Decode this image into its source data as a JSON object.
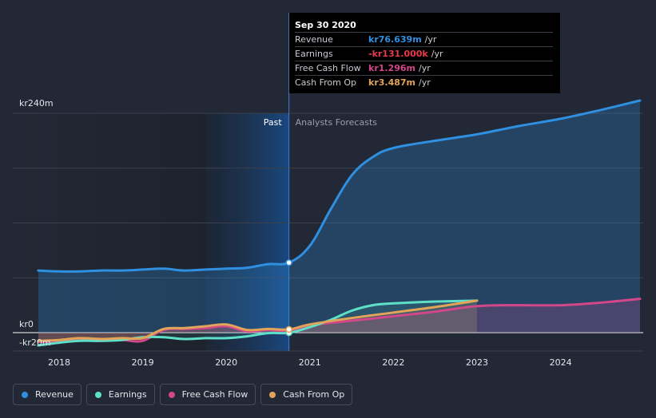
{
  "chart_data": {
    "type": "line",
    "currency_prefix": "kr",
    "y_axis": {
      "top_label": "kr240m",
      "zero_label": "kr0",
      "bottom_label": "-kr20m",
      "ylim": [
        -20,
        240
      ]
    },
    "x_ticks": [
      "2018",
      "2019",
      "2020",
      "2021",
      "2022",
      "2023",
      "2024"
    ],
    "regions": {
      "past_label": "Past",
      "forecast_label": "Analysts Forecasts",
      "divider_date": "Sep 30 2020"
    },
    "series": [
      {
        "name": "Revenue",
        "color": "#2f8fe0",
        "points": [
          [
            2017.75,
            68
          ],
          [
            2018.0,
            67
          ],
          [
            2018.25,
            67
          ],
          [
            2018.5,
            68
          ],
          [
            2018.75,
            68
          ],
          [
            2019.0,
            69
          ],
          [
            2019.25,
            70
          ],
          [
            2019.5,
            68
          ],
          [
            2019.75,
            69
          ],
          [
            2020.0,
            70
          ],
          [
            2020.25,
            71
          ],
          [
            2020.5,
            75
          ],
          [
            2020.75,
            76.6
          ],
          [
            2021.0,
            95
          ],
          [
            2021.25,
            135
          ],
          [
            2021.5,
            172
          ],
          [
            2021.75,
            192
          ],
          [
            2022.0,
            202
          ],
          [
            2022.5,
            210
          ],
          [
            2023.0,
            217
          ],
          [
            2023.5,
            226
          ],
          [
            2024.0,
            234
          ],
          [
            2024.5,
            244
          ],
          [
            2024.95,
            254
          ]
        ]
      },
      {
        "name": "Earnings",
        "color": "#5ee0c8",
        "points": [
          [
            2017.75,
            -14
          ],
          [
            2018.0,
            -11
          ],
          [
            2018.25,
            -9
          ],
          [
            2018.5,
            -9
          ],
          [
            2018.75,
            -8
          ],
          [
            2019.0,
            -5
          ],
          [
            2019.25,
            -5
          ],
          [
            2019.5,
            -7
          ],
          [
            2019.75,
            -6
          ],
          [
            2020.0,
            -6
          ],
          [
            2020.25,
            -4
          ],
          [
            2020.5,
            -0.5
          ],
          [
            2020.75,
            -0.131
          ],
          [
            2021.0,
            6
          ],
          [
            2021.25,
            14
          ],
          [
            2021.5,
            24
          ],
          [
            2021.75,
            30
          ],
          [
            2022.0,
            32
          ],
          [
            2022.5,
            34
          ],
          [
            2023.0,
            35
          ]
        ]
      },
      {
        "name": "Free Cash Flow",
        "color": "#d1478a",
        "points": [
          [
            2017.75,
            -10
          ],
          [
            2018.0,
            -10
          ],
          [
            2018.25,
            -8
          ],
          [
            2018.5,
            -9
          ],
          [
            2018.75,
            -8
          ],
          [
            2019.0,
            -9
          ],
          [
            2019.25,
            3
          ],
          [
            2019.5,
            4
          ],
          [
            2019.75,
            5
          ],
          [
            2020.0,
            7
          ],
          [
            2020.25,
            1.5
          ],
          [
            2020.5,
            3
          ],
          [
            2020.75,
            1.296
          ],
          [
            2021.0,
            8
          ],
          [
            2021.5,
            13
          ],
          [
            2022.0,
            18
          ],
          [
            2022.5,
            23
          ],
          [
            2023.0,
            29
          ],
          [
            2023.5,
            30
          ],
          [
            2024.0,
            30
          ],
          [
            2024.5,
            33
          ],
          [
            2024.95,
            37
          ]
        ]
      },
      {
        "name": "Cash From Op",
        "color": "#e2a458",
        "points": [
          [
            2017.75,
            -9
          ],
          [
            2018.0,
            -8
          ],
          [
            2018.25,
            -6
          ],
          [
            2018.5,
            -7
          ],
          [
            2018.75,
            -6
          ],
          [
            2019.0,
            -6
          ],
          [
            2019.25,
            4
          ],
          [
            2019.5,
            5
          ],
          [
            2019.75,
            7
          ],
          [
            2020.0,
            9
          ],
          [
            2020.25,
            3
          ],
          [
            2020.5,
            4
          ],
          [
            2020.75,
            3.487
          ],
          [
            2021.0,
            9
          ],
          [
            2021.5,
            16
          ],
          [
            2022.0,
            22
          ],
          [
            2022.5,
            28
          ],
          [
            2023.0,
            35
          ]
        ]
      }
    ]
  },
  "tooltip": {
    "date": "Sep 30 2020",
    "rows": [
      {
        "label": "Revenue",
        "value": "kr76.639m",
        "unit": "/yr",
        "color": "#2f8fe0"
      },
      {
        "label": "Earnings",
        "value": "-kr131.000k",
        "unit": "/yr",
        "color": "#e8394a"
      },
      {
        "label": "Free Cash Flow",
        "value": "kr1.296m",
        "unit": "/yr",
        "color": "#d1478a"
      },
      {
        "label": "Cash From Op",
        "value": "kr3.487m",
        "unit": "/yr",
        "color": "#e2a458"
      }
    ]
  },
  "legend": [
    {
      "label": "Revenue",
      "color": "#2f8fe0"
    },
    {
      "label": "Earnings",
      "color": "#5ee0c8"
    },
    {
      "label": "Free Cash Flow",
      "color": "#d1478a"
    },
    {
      "label": "Cash From Op",
      "color": "#e2a458"
    }
  ]
}
